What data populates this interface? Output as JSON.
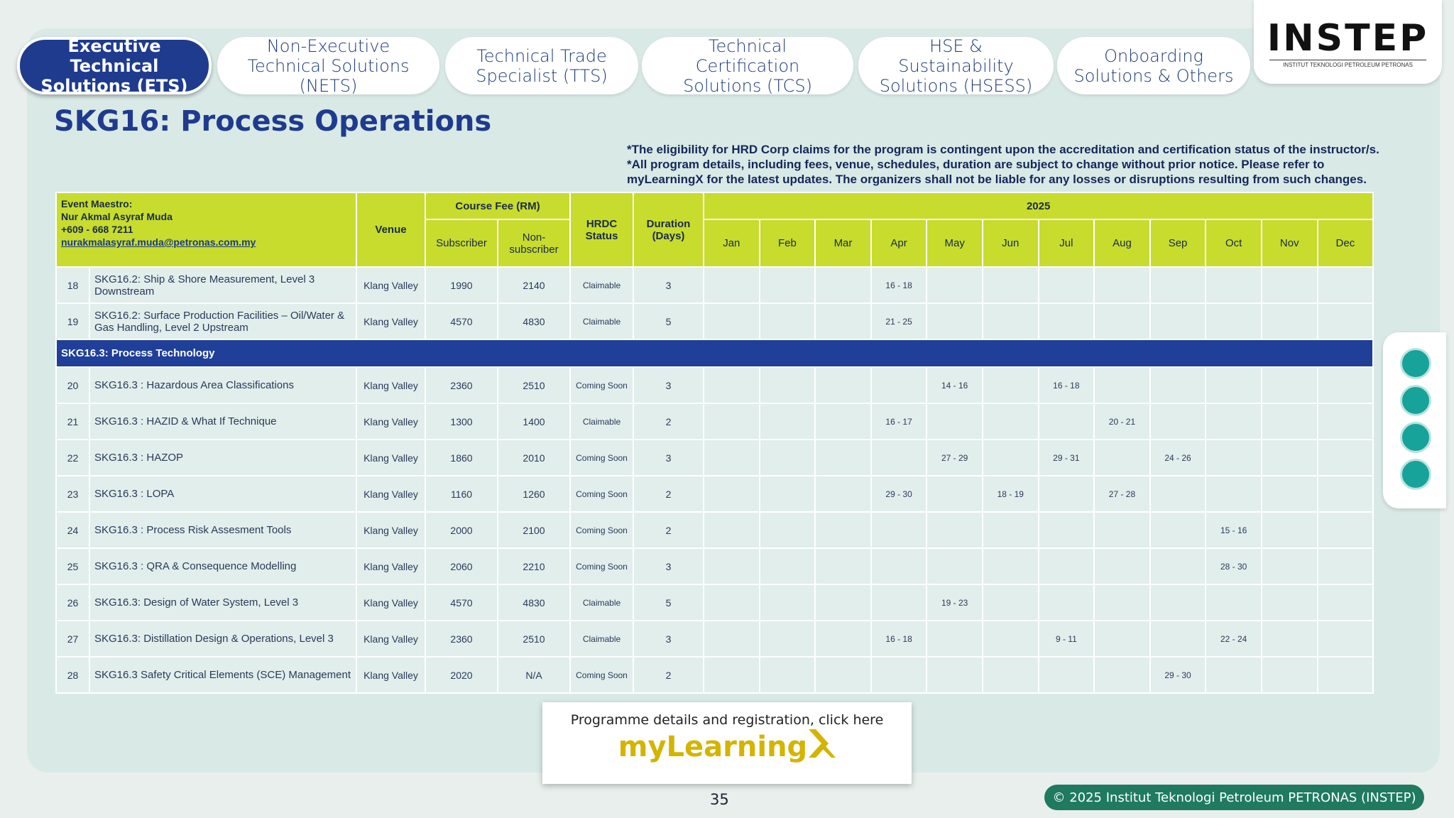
{
  "tabs": [
    "Executive Technical Solutions (ETS)",
    "Non-Executive Technical Solutions (NETS)",
    "Technical Trade Specialist (TTS)",
    "Technical Certification Solutions (TCS)",
    "HSE & Sustainability Solutions (HSESS)",
    "Onboarding Solutions & Others"
  ],
  "logo": {
    "name": "INSTEP",
    "tagline": "INSTITUT TEKNOLOGI PETROLEUM PETRONAS"
  },
  "header": {
    "title": "SKG16: Process Operations",
    "notes": [
      "*The eligibility for HRD Corp claims for the program is contingent upon the accreditation and certification status of the instructor/s.",
      "*All program details, including fees, venue, schedules, duration are subject to change without prior notice. Please refer to myLearningX for the latest updates. The organizers shall not be liable for any losses or disruptions resulting from such changes."
    ]
  },
  "table": {
    "maestro": {
      "label": "Event Maestro:",
      "name": "Nur Akmal Asyraf Muda",
      "phone": "+609 - 668 7211",
      "email": "nurakmalasyraf.muda@petronas.com.my"
    },
    "headers": {
      "venue": "Venue",
      "fee": "Course Fee (RM)",
      "subscriber": "Subscriber",
      "non_subscriber": "Non-subscriber",
      "hrdc": "HRDC Status",
      "duration": "Duration (Days)",
      "year": "2025"
    },
    "months": [
      "Jan",
      "Feb",
      "Mar",
      "Apr",
      "May",
      "Jun",
      "Jul",
      "Aug",
      "Sep",
      "Oct",
      "Nov",
      "Dec"
    ],
    "rows": [
      {
        "no": 18,
        "title": "SKG16.2: Ship & Shore Measurement, Level 3 Downstream",
        "venue": "Klang Valley",
        "subscriber": 1990,
        "non_subscriber": 2140,
        "hrdc": "Claimable",
        "duration": 3,
        "schedule": [
          null,
          null,
          null,
          "16 - 18",
          null,
          null,
          null,
          null,
          null,
          null,
          null,
          null
        ]
      },
      {
        "no": 19,
        "title": "SKG16.2: Surface Production Facilities – Oil/Water & Gas Handling, Level 2 Upstream",
        "venue": "Klang Valley",
        "subscriber": 4570,
        "non_subscriber": 4830,
        "hrdc": "Claimable",
        "duration": 5,
        "schedule": [
          null,
          null,
          null,
          "21 - 25",
          null,
          null,
          null,
          null,
          null,
          null,
          null,
          null
        ]
      },
      {
        "section": "SKG16.3: Process Technology"
      },
      {
        "no": 20,
        "title": "SKG16.3 : Hazardous Area Classifications",
        "venue": "Klang Valley",
        "subscriber": 2360,
        "non_subscriber": 2510,
        "hrdc": "Coming Soon",
        "duration": 3,
        "schedule": [
          null,
          null,
          null,
          null,
          "14 - 16",
          null,
          "16 - 18",
          null,
          null,
          null,
          null,
          null
        ]
      },
      {
        "no": 21,
        "title": "SKG16.3 : HAZID & What If Technique",
        "venue": "Klang Valley",
        "subscriber": 1300,
        "non_subscriber": 1400,
        "hrdc": "Claimable",
        "duration": 2,
        "schedule": [
          null,
          null,
          null,
          "16 - 17",
          null,
          null,
          null,
          "20 - 21",
          null,
          null,
          null,
          null
        ]
      },
      {
        "no": 22,
        "title": "SKG16.3 : HAZOP",
        "venue": "Klang Valley",
        "subscriber": 1860,
        "non_subscriber": 2010,
        "hrdc": "Coming Soon",
        "duration": 3,
        "schedule": [
          null,
          null,
          null,
          null,
          "27 - 29",
          null,
          "29 - 31",
          null,
          "24 - 26",
          null,
          null,
          null
        ]
      },
      {
        "no": 23,
        "title": "SKG16.3 : LOPA",
        "venue": "Klang Valley",
        "subscriber": 1160,
        "non_subscriber": 1260,
        "hrdc": "Coming Soon",
        "duration": 2,
        "schedule": [
          null,
          null,
          null,
          "29 - 30",
          null,
          "18 - 19",
          null,
          "27 - 28",
          null,
          null,
          null,
          null
        ]
      },
      {
        "no": 24,
        "title": "SKG16.3 : Process Risk Assesment Tools",
        "venue": "Klang Valley",
        "subscriber": 2000,
        "non_subscriber": 2100,
        "hrdc": "Coming Soon",
        "duration": 2,
        "schedule": [
          null,
          null,
          null,
          null,
          null,
          null,
          null,
          null,
          null,
          "15 - 16",
          null,
          null
        ]
      },
      {
        "no": 25,
        "title": "SKG16.3 : QRA & Consequence Modelling",
        "venue": "Klang Valley",
        "subscriber": 2060,
        "non_subscriber": 2210,
        "hrdc": "Coming Soon",
        "duration": 3,
        "schedule": [
          null,
          null,
          null,
          null,
          null,
          null,
          null,
          null,
          null,
          "28 - 30",
          null,
          null
        ]
      },
      {
        "no": 26,
        "title": "SKG16.3: Design of Water System, Level 3",
        "venue": "Klang Valley",
        "subscriber": 4570,
        "non_subscriber": 4830,
        "hrdc": "Claimable",
        "duration": 5,
        "schedule": [
          null,
          null,
          null,
          null,
          "19 - 23",
          null,
          null,
          null,
          null,
          null,
          null,
          null
        ]
      },
      {
        "no": 27,
        "title": "SKG16.3: Distillation Design & Operations, Level 3",
        "venue": "Klang Valley",
        "subscriber": 2360,
        "non_subscriber": 2510,
        "hrdc": "Claimable",
        "duration": 3,
        "schedule": [
          null,
          null,
          null,
          "16 - 18",
          null,
          null,
          "9 - 11",
          null,
          null,
          "22 - 24",
          null,
          null
        ]
      },
      {
        "no": 28,
        "title": "SKG16.3 Safety Critical Elements (SCE) Management",
        "venue": "Klang Valley",
        "subscriber": 2020,
        "non_subscriber": "N/A",
        "hrdc": "Coming Soon",
        "duration": 2,
        "schedule": [
          null,
          null,
          null,
          null,
          null,
          null,
          null,
          null,
          "29 - 30",
          null,
          null,
          null
        ]
      }
    ]
  },
  "footer": {
    "cta": "Programme details and registration, click here",
    "brand": "myLearning",
    "page": "35",
    "copyright": "© 2025 Institut Teknologi Petroleum PETRONAS (INSTEP)"
  }
}
